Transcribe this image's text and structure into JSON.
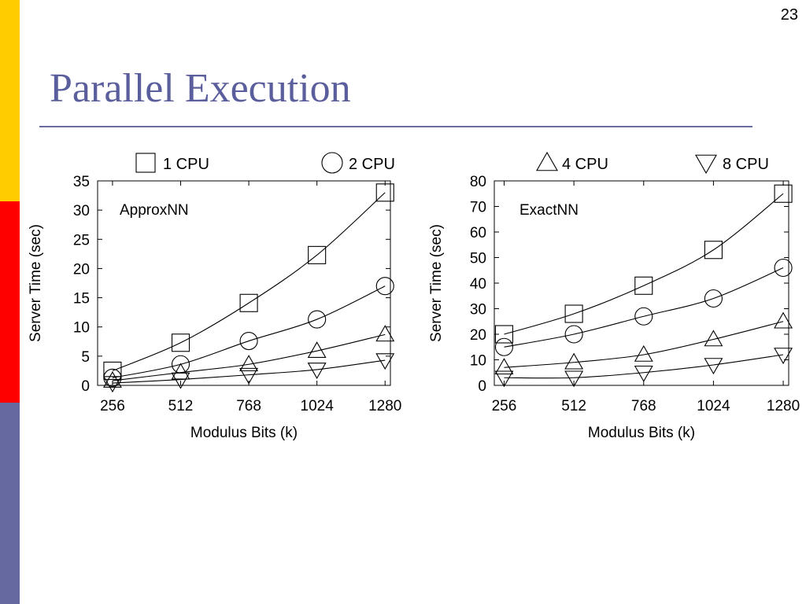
{
  "slide": {
    "number": "23",
    "title": "Parallel Execution",
    "colors": {
      "title": "#5b5e9c",
      "rule": "#6a6ba3",
      "side_yellow": "#ffcc00",
      "side_red": "#ff0000",
      "side_blue": "#6668a0"
    }
  },
  "legend": [
    {
      "label": "1 CPU",
      "marker": "square"
    },
    {
      "label": "2 CPU",
      "marker": "circle"
    },
    {
      "label": "4 CPU",
      "marker": "triangle-up"
    },
    {
      "label": "8 CPU",
      "marker": "triangle-down"
    }
  ],
  "chart_data": [
    {
      "type": "line",
      "title": "ApproxNN",
      "xlabel": "Modulus Bits (k)",
      "ylabel": "Server Time (sec)",
      "x": [
        256,
        512,
        768,
        1024,
        1280
      ],
      "xticks": [
        "256",
        "512",
        "768",
        "1024",
        "1280"
      ],
      "xlim": [
        200,
        1300
      ],
      "ylim": [
        0,
        35
      ],
      "yticks": [
        0,
        5,
        10,
        15,
        20,
        25,
        30,
        35
      ],
      "grid": false,
      "series": [
        {
          "name": "1 CPU",
          "marker": "square",
          "values": [
            2.5,
            7.3,
            14.1,
            22.3,
            33.0
          ]
        },
        {
          "name": "2 CPU",
          "marker": "circle",
          "values": [
            1.3,
            3.6,
            7.6,
            11.3,
            17.0
          ]
        },
        {
          "name": "4 CPU",
          "marker": "triangle-up",
          "values": [
            0.8,
            2.2,
            3.6,
            5.9,
            8.7
          ]
        },
        {
          "name": "8 CPU",
          "marker": "triangle-down",
          "values": [
            0.4,
            1.0,
            1.8,
            2.7,
            4.3
          ]
        }
      ]
    },
    {
      "type": "line",
      "title": "ExactNN",
      "xlabel": "Modulus Bits (k)",
      "ylabel": "Server Time (sec)",
      "x": [
        256,
        512,
        768,
        1024,
        1280
      ],
      "xticks": [
        "256",
        "512",
        "768",
        "1024",
        "1280"
      ],
      "xlim": [
        220,
        1300
      ],
      "ylim": [
        0,
        80
      ],
      "yticks": [
        0,
        10,
        20,
        30,
        40,
        50,
        60,
        70,
        80
      ],
      "grid": false,
      "series": [
        {
          "name": "1 CPU",
          "marker": "square",
          "values": [
            20,
            28,
            39,
            53,
            75
          ]
        },
        {
          "name": "2 CPU",
          "marker": "circle",
          "values": [
            15,
            20,
            27,
            34,
            46
          ]
        },
        {
          "name": "4 CPU",
          "marker": "triangle-up",
          "values": [
            7,
            9,
            12,
            18,
            25
          ]
        },
        {
          "name": "8 CPU",
          "marker": "triangle-down",
          "values": [
            3,
            3,
            5,
            8,
            12
          ]
        }
      ]
    }
  ]
}
